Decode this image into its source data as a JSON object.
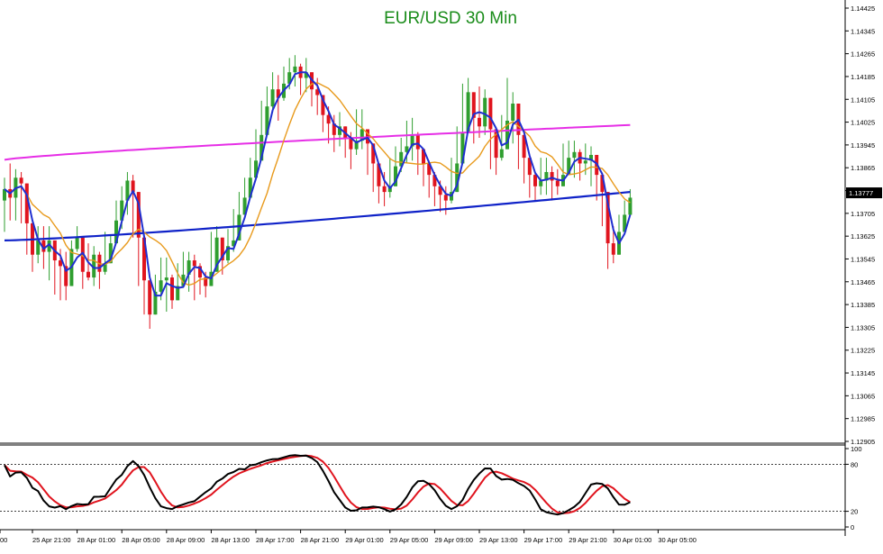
{
  "chart_data": {
    "type": "candlestick",
    "title": "EUR/USD 30 Min",
    "colors": {
      "background": "#ffffff",
      "title": "#1a8c1a",
      "bull": "#2f9e2f",
      "bear": "#e0141e",
      "fast_ma": "#1f2fd0",
      "mid_ma": "#e89a1c",
      "slow_ma": "#0f22c8",
      "long_ma": "#e62ee6",
      "osc_main": "#000000",
      "osc_signal": "#e0141e",
      "axis": "#000000",
      "price_tag_bg": "#000000",
      "price_tag_text": "#ffffff"
    },
    "price_axis": {
      "ticks": [
        "1.14425",
        "1.14345",
        "1.14265",
        "1.14185",
        "1.14105",
        "1.14025",
        "1.13945",
        "1.13865",
        "1.13785",
        "1.13705",
        "1.13625",
        "1.13545",
        "1.13465",
        "1.13385",
        "1.13305",
        "1.13225",
        "1.13145",
        "1.13065",
        "1.12985",
        "1.12905"
      ],
      "ylim": [
        1.12905,
        1.14425
      ],
      "current_price": "1.13777"
    },
    "time_axis": {
      "ticks": [
        "00",
        "25 Apr 21:00",
        "28 Apr 01:00",
        "28 Apr 05:00",
        "28 Apr 09:00",
        "28 Apr 13:00",
        "28 Apr 17:00",
        "28 Apr 21:00",
        "29 Apr 01:00",
        "29 Apr 05:00",
        "29 Apr 09:00",
        "29 Apr 13:00",
        "29 Apr 17:00",
        "29 Apr 21:00",
        "30 Apr 01:00",
        "30 Apr 05:00"
      ],
      "bars_per_tick": 8
    },
    "ohlc_path": [
      [
        1.1379,
        1.1383,
        1.1364
      ],
      [
        1.1376,
        1.1388,
        1.1368
      ],
      [
        1.1383,
        1.1386,
        1.1368
      ],
      [
        1.1381,
        1.1385,
        1.1367
      ],
      [
        1.1367,
        1.1369,
        1.1356
      ],
      [
        1.1356,
        1.1368,
        1.135
      ],
      [
        1.1361,
        1.1366,
        1.1353
      ],
      [
        1.1357,
        1.1366,
        1.1351
      ],
      [
        1.1361,
        1.1366,
        1.1347
      ],
      [
        1.1354,
        1.1357,
        1.1342
      ],
      [
        1.1352,
        1.1358,
        1.134
      ],
      [
        1.1345,
        1.1357,
        1.134
      ],
      [
        1.1358,
        1.1361,
        1.135
      ],
      [
        1.1362,
        1.1366,
        1.1357
      ],
      [
        1.135,
        1.1355,
        1.1344
      ],
      [
        1.1348,
        1.136,
        1.1347
      ],
      [
        1.1356,
        1.1359,
        1.1345
      ],
      [
        1.135,
        1.1357,
        1.1344
      ],
      [
        1.1353,
        1.1364,
        1.1349
      ],
      [
        1.136,
        1.1363,
        1.1355
      ],
      [
        1.1368,
        1.1375,
        1.1361
      ],
      [
        1.1375,
        1.138,
        1.1365
      ],
      [
        1.1382,
        1.1385,
        1.137
      ],
      [
        1.1378,
        1.1384,
        1.1362
      ],
      [
        1.1362,
        1.1368,
        1.1345
      ],
      [
        1.1347,
        1.1352,
        1.1335
      ],
      [
        1.1335,
        1.1345,
        1.133
      ],
      [
        1.1343,
        1.1349,
        1.1338
      ],
      [
        1.1347,
        1.1355,
        1.134
      ],
      [
        1.1348,
        1.1355,
        1.1336
      ],
      [
        1.134,
        1.1349,
        1.1337
      ],
      [
        1.1345,
        1.1353,
        1.1341
      ],
      [
        1.1349,
        1.1357,
        1.1345
      ],
      [
        1.1354,
        1.1357,
        1.1343
      ],
      [
        1.1352,
        1.1356,
        1.134
      ],
      [
        1.1348,
        1.1353,
        1.1342
      ],
      [
        1.1345,
        1.135,
        1.1341
      ],
      [
        1.135,
        1.1364,
        1.1347
      ],
      [
        1.1362,
        1.1366,
        1.1351
      ],
      [
        1.1354,
        1.1361,
        1.1349
      ],
      [
        1.1359,
        1.1365,
        1.1353
      ],
      [
        1.1361,
        1.1372,
        1.1357
      ],
      [
        1.137,
        1.1378,
        1.1362
      ],
      [
        1.1376,
        1.1383,
        1.1372
      ],
      [
        1.1383,
        1.139,
        1.1376
      ],
      [
        1.1389,
        1.14,
        1.1383
      ],
      [
        1.1398,
        1.141,
        1.1392
      ],
      [
        1.1408,
        1.1415,
        1.1402
      ],
      [
        1.1414,
        1.142,
        1.1406
      ],
      [
        1.1411,
        1.1419,
        1.1403
      ],
      [
        1.1416,
        1.1422,
        1.141
      ],
      [
        1.142,
        1.1425,
        1.1414
      ],
      [
        1.1422,
        1.1426,
        1.1415
      ],
      [
        1.1418,
        1.1423,
        1.1412
      ],
      [
        1.142,
        1.1425,
        1.1413
      ],
      [
        1.1414,
        1.1419,
        1.1408
      ],
      [
        1.1412,
        1.1418,
        1.1405
      ],
      [
        1.1405,
        1.1411,
        1.1399
      ],
      [
        1.1402,
        1.1408,
        1.1395
      ],
      [
        1.1398,
        1.1405,
        1.1392
      ],
      [
        1.1401,
        1.1406,
        1.1394
      ],
      [
        1.1397,
        1.1401,
        1.139
      ],
      [
        1.1393,
        1.1399,
        1.1386
      ],
      [
        1.1396,
        1.1407,
        1.1391
      ],
      [
        1.14,
        1.1407,
        1.1393
      ],
      [
        1.1395,
        1.1399,
        1.1384
      ],
      [
        1.1388,
        1.1393,
        1.1378
      ],
      [
        1.138,
        1.1386,
        1.1374
      ],
      [
        1.1378,
        1.1385,
        1.1373
      ],
      [
        1.138,
        1.139,
        1.1376
      ],
      [
        1.1387,
        1.1394,
        1.1382
      ],
      [
        1.1392,
        1.1397,
        1.1385
      ],
      [
        1.1394,
        1.1403,
        1.1388
      ],
      [
        1.1398,
        1.1404,
        1.1389
      ],
      [
        1.1393,
        1.1399,
        1.1384
      ],
      [
        1.1388,
        1.1393,
        1.138
      ],
      [
        1.1384,
        1.1389,
        1.1376
      ],
      [
        1.138,
        1.1385,
        1.1373
      ],
      [
        1.1377,
        1.1382,
        1.1371
      ],
      [
        1.1375,
        1.138,
        1.137
      ],
      [
        1.1378,
        1.139,
        1.1374
      ],
      [
        1.1388,
        1.1401,
        1.1384
      ],
      [
        1.1399,
        1.1416,
        1.1395
      ],
      [
        1.1413,
        1.1418,
        1.1399
      ],
      [
        1.1404,
        1.141,
        1.1395
      ],
      [
        1.1401,
        1.1415,
        1.1397
      ],
      [
        1.1411,
        1.1414,
        1.1398
      ],
      [
        1.14,
        1.1405,
        1.1386
      ],
      [
        1.139,
        1.1397,
        1.1384
      ],
      [
        1.1393,
        1.1405,
        1.1389
      ],
      [
        1.1403,
        1.1418,
        1.14
      ],
      [
        1.1409,
        1.1413,
        1.1395
      ],
      [
        1.1398,
        1.1402,
        1.1386
      ],
      [
        1.139,
        1.1394,
        1.1381
      ],
      [
        1.1384,
        1.1389,
        1.1376
      ],
      [
        1.138,
        1.1385,
        1.1375
      ],
      [
        1.1382,
        1.139,
        1.1377
      ],
      [
        1.1385,
        1.139,
        1.1377
      ],
      [
        1.1382,
        1.1387,
        1.1375
      ],
      [
        1.138,
        1.1386,
        1.1377
      ],
      [
        1.1384,
        1.1395,
        1.138
      ],
      [
        1.139,
        1.1396,
        1.1384
      ],
      [
        1.1392,
        1.1396,
        1.1383
      ],
      [
        1.1388,
        1.1393,
        1.1382
      ],
      [
        1.1389,
        1.1395,
        1.1384
      ],
      [
        1.1391,
        1.1394,
        1.138
      ],
      [
        1.1384,
        1.1388,
        1.1375
      ],
      [
        1.1378,
        1.1382,
        1.1366
      ],
      [
        1.136,
        1.1364,
        1.1351
      ],
      [
        1.1356,
        1.1366,
        1.1353
      ],
      [
        1.1364,
        1.137,
        1.1359
      ],
      [
        1.137,
        1.1375,
        1.1364
      ],
      [
        1.1376,
        1.1379,
        1.137
      ]
    ],
    "indicator": {
      "levels": [
        "100",
        "80",
        "20",
        "0"
      ]
    }
  }
}
